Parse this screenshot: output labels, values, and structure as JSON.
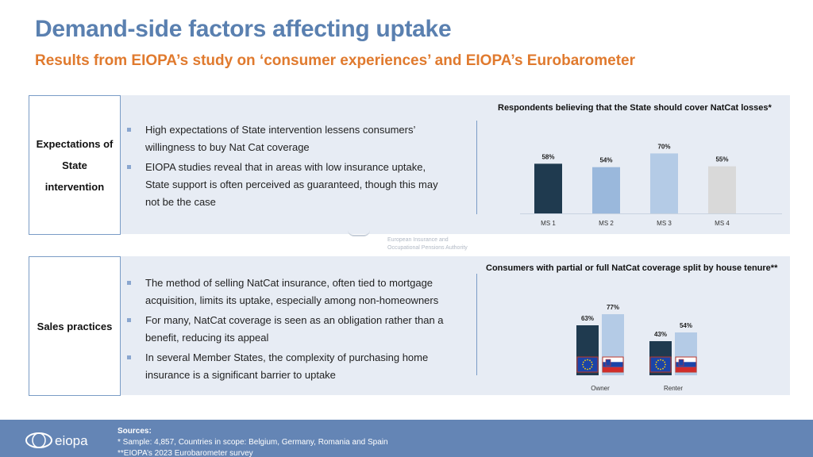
{
  "header": {
    "title": "Demand-side factors affecting uptake",
    "subtitle": "Results from EIOPA’s study on ‘consumer experiences’ and EIOPA’s Eurobarometer"
  },
  "section1": {
    "label_lines": [
      "Expectations of",
      "State",
      "intervention"
    ],
    "bullets": [
      {
        "line1": "High expectations of State intervention lessens consumers’",
        "line2": "willingness to buy Nat Cat coverage"
      },
      {
        "line1": "EIOPA studies reveal that in areas with low insurance uptake,",
        "line2": "State support is often perceived as guaranteed, though this may",
        "line3": "not be the case"
      }
    ]
  },
  "section2": {
    "label": "Sales practices",
    "bullets": [
      {
        "line1": "The method of selling NatCat insurance, often tied to mortgage",
        "line2": "acquisition, limits its uptake, especially among non-homeowners"
      },
      {
        "line1": "For many, NatCat coverage is seen as an obligation rather than a",
        "line2": "benefit, reducing its appeal"
      },
      {
        "line1": "In several Member States, the complexity of purchasing home",
        "line2": "insurance is a significant barrier to uptake"
      }
    ]
  },
  "watermark": {
    "line1": "European Insurance and",
    "line2": "Occupational Pensions Authority"
  },
  "chart_data": [
    {
      "type": "bar",
      "title": "Respondents believing that the State should cover NatCat losses*",
      "categories": [
        "MS 1",
        "MS 2",
        "MS 3",
        "MS 4"
      ],
      "values": [
        58,
        54,
        70,
        55
      ],
      "value_labels": [
        "58%",
        "54%",
        "70%",
        "55%"
      ],
      "colors": [
        "#1f3a4f",
        "#9ab8dc",
        "#b4cbe6",
        "#d9d9d9"
      ],
      "ylim": [
        0,
        100
      ],
      "grid": false
    },
    {
      "type": "bar",
      "title": "Consumers with partial or full NatCat coverage split by house tenure**",
      "categories": [
        "Owner",
        "Renter"
      ],
      "series": [
        {
          "values": [
            63,
            43
          ],
          "value_labels": [
            "63%",
            "43%"
          ],
          "color": "#1f3a4f",
          "flag": "eu-flag"
        },
        {
          "values": [
            77,
            54
          ],
          "value_labels": [
            "77%",
            "54%"
          ],
          "color": "#b4cbe6",
          "flag": "slovenia-flag"
        }
      ],
      "ylim": [
        0,
        100
      ],
      "grid": false
    }
  ],
  "footer": {
    "logo_text": "eiopa",
    "sources_title": "Sources:",
    "sources_line1": "* Sample: 4,857, Countries in scope: Belgium, Germany, Romania and Spain",
    "sources_line2": "**EIOPA’s 2023 Eurobarometer survey"
  },
  "colors": {
    "title": "#5a80b0",
    "subtitle": "#e07a2e",
    "panel": "#e7ecf4",
    "footer": "#6485b5"
  }
}
